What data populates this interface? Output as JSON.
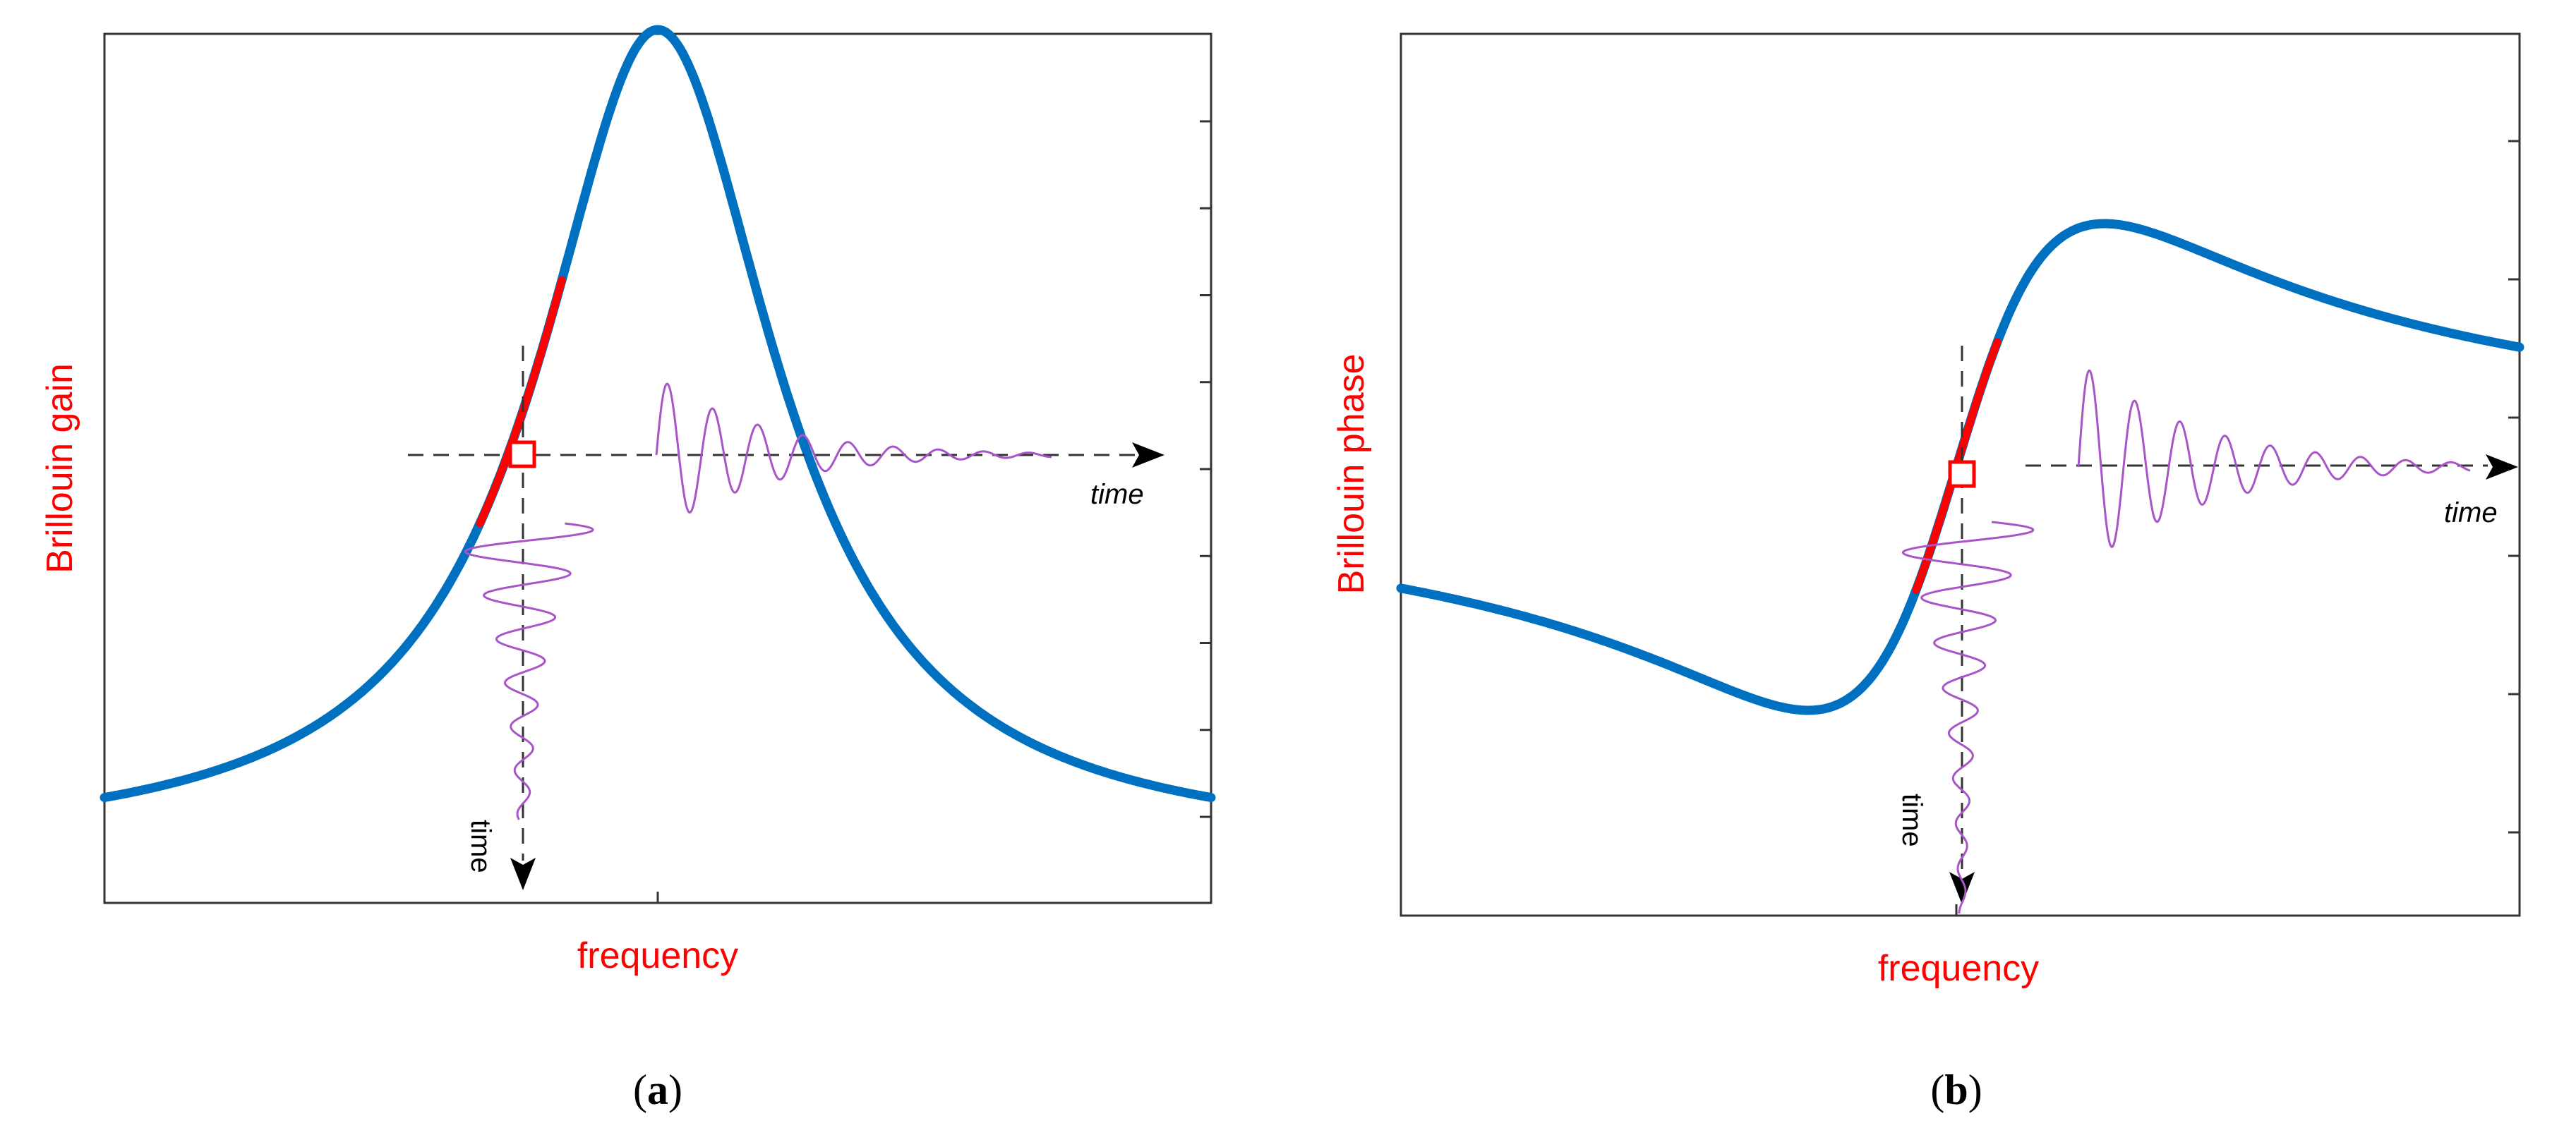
{
  "panels": [
    {
      "id": "a",
      "ylabel": "Brillouin gain",
      "xlabel": "frequency",
      "time_label_h": "time",
      "time_label_v": "time",
      "caption_open": "(",
      "caption_letter": "a",
      "caption_close": ")",
      "curve": "Lorentzian gain peak",
      "highlight_color": "#ff0000",
      "curve_color": "#0070c0",
      "wave_color": "#a855c7",
      "right_ticks": 9
    },
    {
      "id": "b",
      "ylabel": "Brillouin phase",
      "xlabel": "frequency",
      "time_label_h": "time",
      "time_label_v": "time",
      "caption_open": "(",
      "caption_letter": "b",
      "caption_close": ")",
      "curve": "dispersive phase response",
      "highlight_color": "#ff0000",
      "curve_color": "#0070c0",
      "wave_color": "#a855c7",
      "right_ticks": 6
    }
  ]
}
